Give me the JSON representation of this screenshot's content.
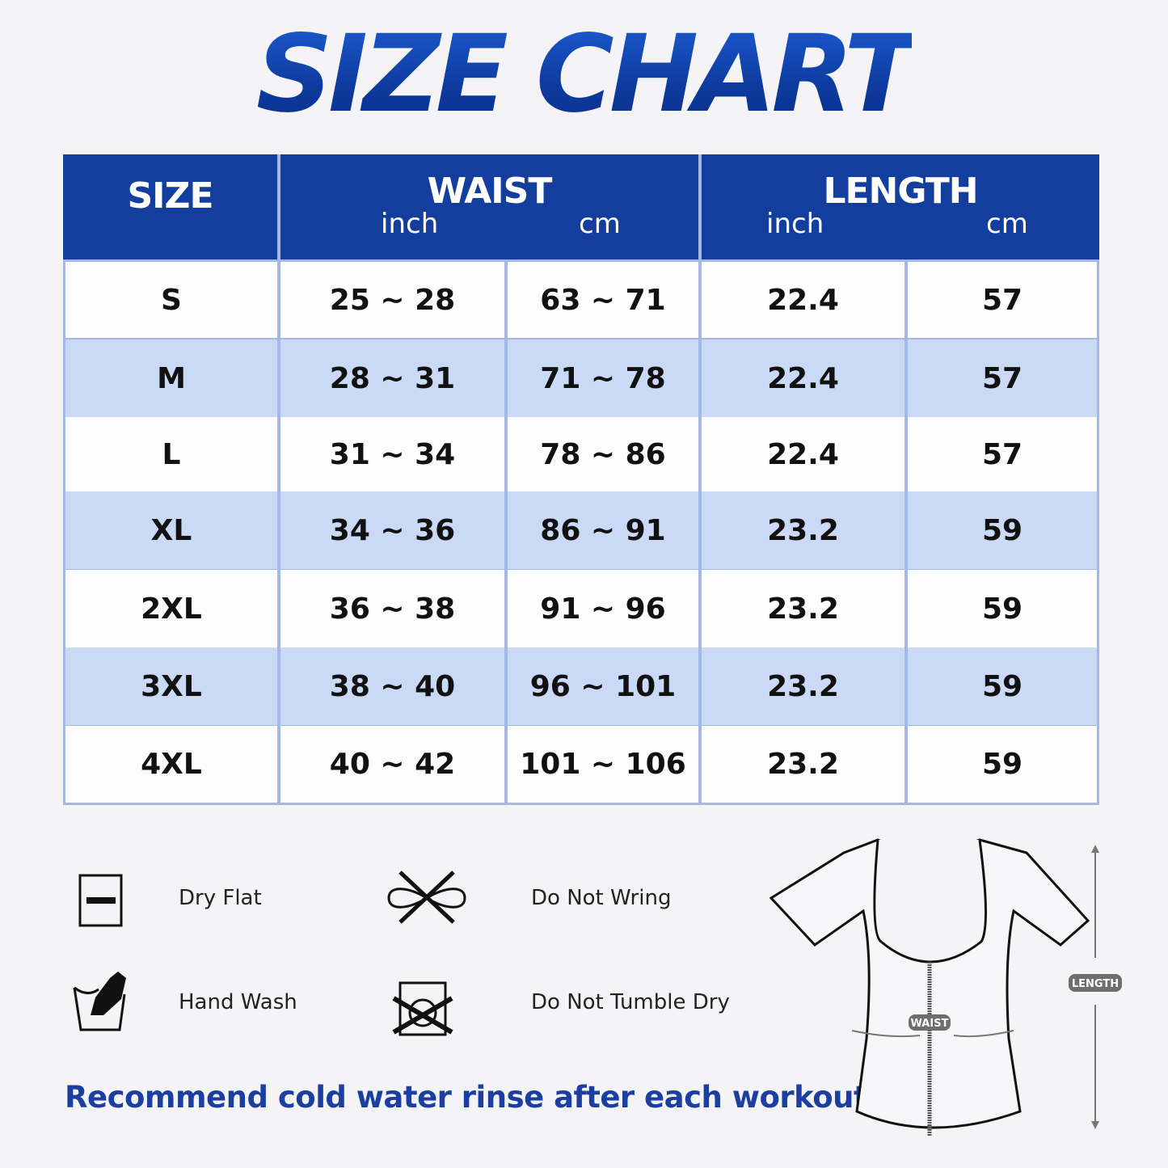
{
  "title": "SIZE CHART",
  "table": {
    "headers": {
      "size": "SIZE",
      "waist": "WAIST",
      "length": "LENGTH",
      "waist_inch": "inch",
      "waist_cm": "cm",
      "length_inch": "inch",
      "length_cm": "cm"
    },
    "rows": [
      {
        "size": "S",
        "waist_inch": "25 ~ 28",
        "waist_cm": "63 ~ 71",
        "length_inch": "22.4",
        "length_cm": "57"
      },
      {
        "size": "M",
        "waist_inch": "28 ~ 31",
        "waist_cm": "71 ~ 78",
        "length_inch": "22.4",
        "length_cm": "57"
      },
      {
        "size": "L",
        "waist_inch": "31 ~ 34",
        "waist_cm": "78 ~ 86",
        "length_inch": "22.4",
        "length_cm": "57"
      },
      {
        "size": "XL",
        "waist_inch": "34 ~ 36",
        "waist_cm": "86 ~ 91",
        "length_inch": "23.2",
        "length_cm": "59"
      },
      {
        "size": "2XL",
        "waist_inch": "36 ~ 38",
        "waist_cm": "91 ~ 96",
        "length_inch": "23.2",
        "length_cm": "59"
      },
      {
        "size": "3XL",
        "waist_inch": "38 ~ 40",
        "waist_cm": "96 ~ 101",
        "length_inch": "23.2",
        "length_cm": "59"
      },
      {
        "size": "4XL",
        "waist_inch": "40 ~ 42",
        "waist_cm": "101 ~ 106",
        "length_inch": "23.2",
        "length_cm": "59"
      }
    ],
    "colors": {
      "header": "#133e9e",
      "row_even": "#fdfdfd",
      "row_odd": "#cad9f6",
      "border": "#a5b8e4"
    }
  },
  "care": [
    {
      "label": "Dry Flat",
      "icon": "dry-flat-icon"
    },
    {
      "label": "Do Not Wring",
      "icon": "do-not-wring-icon"
    },
    {
      "label": "Hand Wash",
      "icon": "hand-wash-icon"
    },
    {
      "label": "Do Not Tumble Dry",
      "icon": "do-not-tumble-dry-icon"
    }
  ],
  "note": "Recommend cold water rinse after each workout.",
  "diagram": {
    "waist_label": "WAIST",
    "length_label": "LENGTH"
  }
}
